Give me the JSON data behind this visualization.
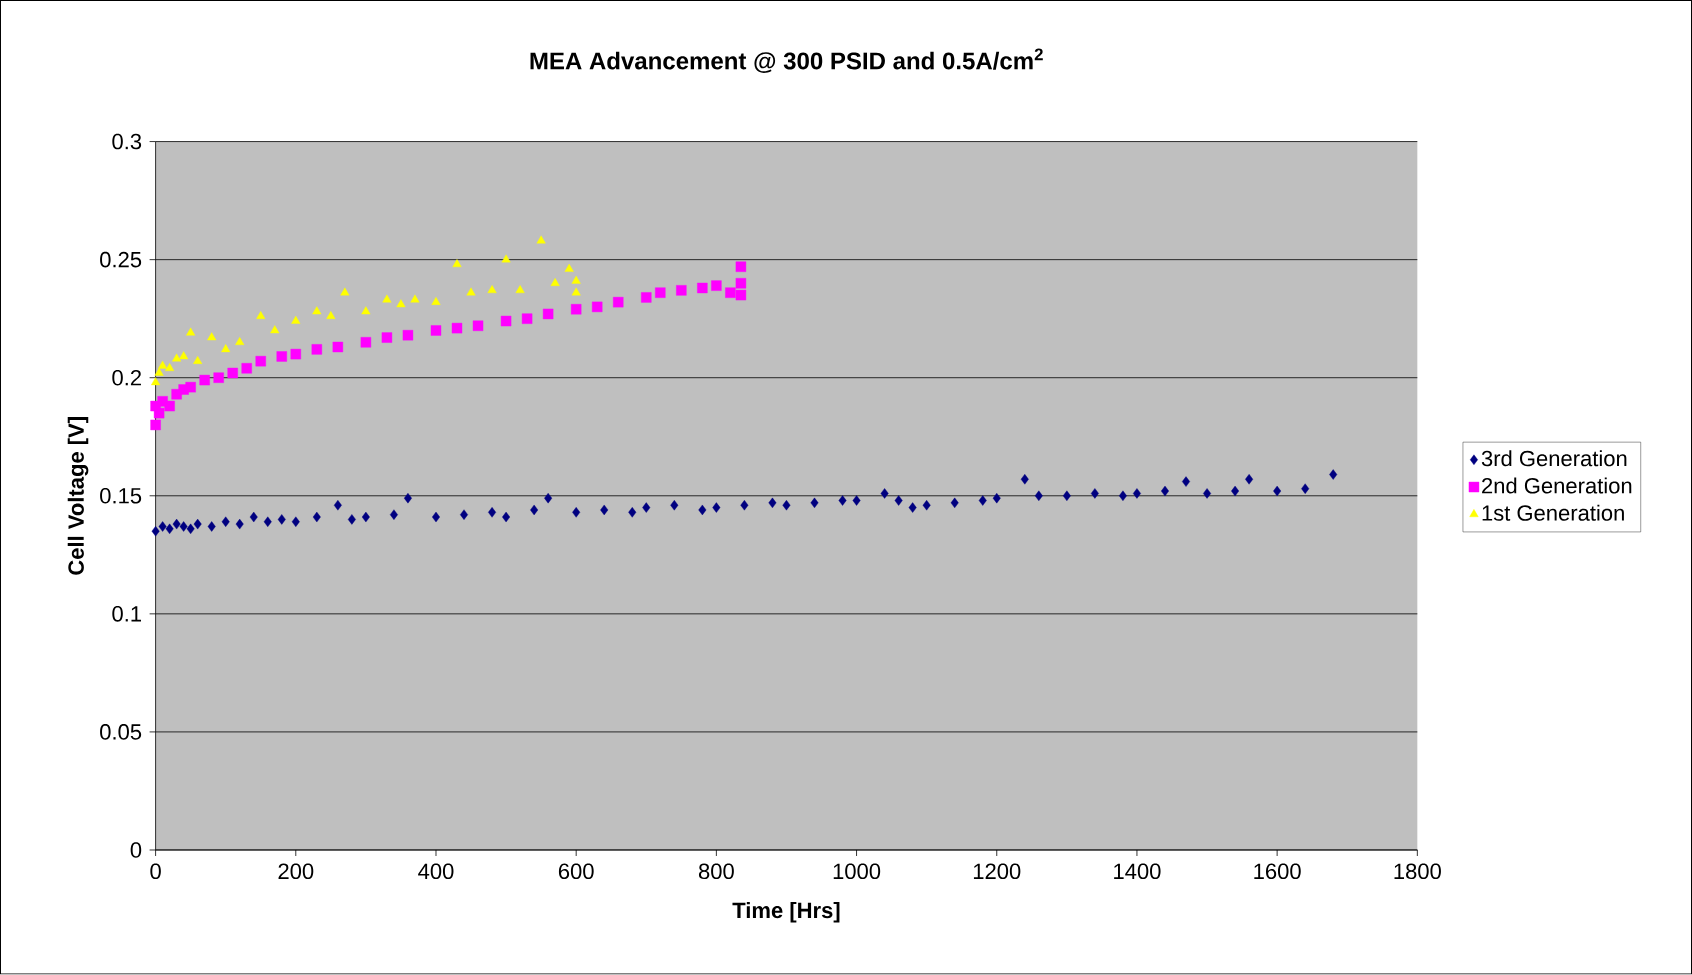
{
  "chart_data": {
    "type": "scatter",
    "title": "MEA Advancement @ 300 PSID and 0.5A/cm$^{2}$",
    "xlabel": "Time [Hrs]",
    "ylabel": "Cell Voltage [V]",
    "xlim": [
      0,
      1800
    ],
    "xticks": [
      0,
      200,
      400,
      600,
      800,
      1000,
      1200,
      1400,
      1600,
      1800
    ],
    "ylim": [
      0,
      0.3
    ],
    "yticks": [
      0,
      0.05,
      0.1,
      0.15,
      0.2,
      0.25,
      0.3
    ],
    "grid": "y",
    "legend": "right",
    "series": [
      {
        "name": "3rd Generation",
        "color": "#000080",
        "marker": "diamond",
        "x": [
          0,
          10,
          20,
          30,
          40,
          50,
          60,
          80,
          100,
          120,
          140,
          160,
          180,
          200,
          230,
          260,
          280,
          300,
          340,
          360,
          400,
          440,
          480,
          500,
          540,
          560,
          600,
          640,
          680,
          700,
          740,
          780,
          800,
          840,
          880,
          900,
          940,
          980,
          1000,
          1040,
          1060,
          1080,
          1100,
          1140,
          1180,
          1200,
          1240,
          1260,
          1300,
          1340,
          1380,
          1400,
          1440,
          1470,
          1500,
          1540,
          1560,
          1600,
          1640,
          1680
        ],
        "values": [
          0.135,
          0.137,
          0.136,
          0.138,
          0.137,
          0.136,
          0.138,
          0.137,
          0.139,
          0.138,
          0.141,
          0.139,
          0.14,
          0.139,
          0.141,
          0.146,
          0.14,
          0.141,
          0.142,
          0.149,
          0.141,
          0.142,
          0.143,
          0.141,
          0.144,
          0.149,
          0.143,
          0.144,
          0.143,
          0.145,
          0.146,
          0.144,
          0.145,
          0.146,
          0.147,
          0.146,
          0.147,
          0.148,
          0.148,
          0.151,
          0.148,
          0.145,
          0.146,
          0.147,
          0.148,
          0.149,
          0.157,
          0.15,
          0.15,
          0.151,
          0.15,
          0.151,
          0.152,
          0.156,
          0.151,
          0.152,
          0.157,
          0.152,
          0.153,
          0.159
        ]
      },
      {
        "name": "2nd Generation",
        "color": "#ff00ff",
        "marker": "square",
        "x": [
          0,
          0,
          5,
          10,
          20,
          30,
          40,
          50,
          70,
          90,
          110,
          130,
          150,
          180,
          200,
          230,
          260,
          300,
          330,
          360,
          400,
          430,
          460,
          500,
          530,
          560,
          600,
          630,
          660,
          700,
          720,
          750,
          780,
          800,
          820,
          835,
          835,
          835
        ],
        "values": [
          0.18,
          0.188,
          0.185,
          0.19,
          0.188,
          0.193,
          0.195,
          0.196,
          0.199,
          0.2,
          0.202,
          0.204,
          0.207,
          0.209,
          0.21,
          0.212,
          0.213,
          0.215,
          0.217,
          0.218,
          0.22,
          0.221,
          0.222,
          0.224,
          0.225,
          0.227,
          0.229,
          0.23,
          0.232,
          0.234,
          0.236,
          0.237,
          0.238,
          0.239,
          0.236,
          0.235,
          0.24,
          0.247
        ]
      },
      {
        "name": "1st Generation",
        "color": "#ffff00",
        "marker": "triangle",
        "x": [
          0,
          5,
          10,
          20,
          30,
          40,
          50,
          60,
          80,
          100,
          120,
          150,
          170,
          200,
          230,
          250,
          270,
          300,
          330,
          350,
          370,
          400,
          430,
          450,
          480,
          500,
          520,
          550,
          570,
          590,
          600,
          600
        ],
        "values": [
          0.198,
          0.202,
          0.205,
          0.204,
          0.208,
          0.209,
          0.219,
          0.207,
          0.217,
          0.212,
          0.215,
          0.226,
          0.22,
          0.224,
          0.228,
          0.226,
          0.236,
          0.228,
          0.233,
          0.231,
          0.233,
          0.232,
          0.248,
          0.236,
          0.237,
          0.25,
          0.237,
          0.258,
          0.24,
          0.246,
          0.241,
          0.236
        ]
      }
    ]
  }
}
